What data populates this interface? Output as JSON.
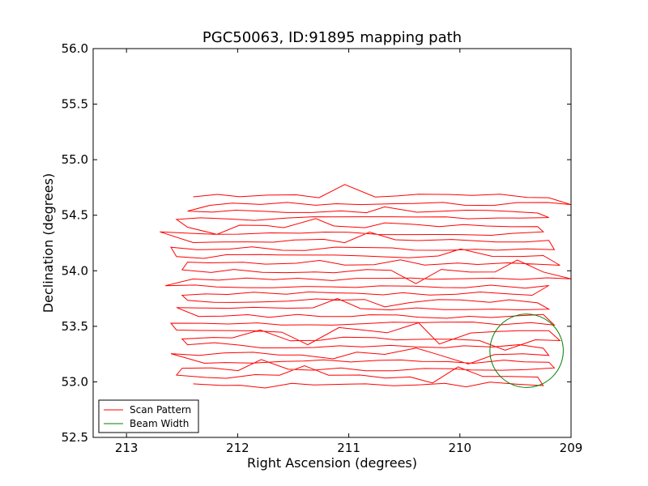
{
  "chart_data": {
    "type": "line",
    "title": "PGC50063, ID:91895 mapping path",
    "xlabel": "Right Ascension (degrees)",
    "ylabel": "Declination (degrees)",
    "xlim": [
      213.3,
      209.0
    ],
    "ylim": [
      52.5,
      56.0
    ],
    "x_ticks": [
      213,
      212,
      211,
      210,
      209
    ],
    "x_tick_labels": [
      "213",
      "212",
      "211",
      "210",
      "209"
    ],
    "y_ticks": [
      52.5,
      53.0,
      53.5,
      54.0,
      54.5,
      55.0,
      55.5,
      56.0
    ],
    "y_tick_labels": [
      "52.5",
      "53.0",
      "53.5",
      "54.0",
      "54.5",
      "55.0",
      "55.5",
      "56.0"
    ],
    "grid": false,
    "legend_position": "lower-left",
    "series": [
      {
        "name": "Scan Pattern",
        "color": "#ff0000",
        "scan": {
          "dec_start": 52.98,
          "dec_step": 0.0677,
          "rows": 26,
          "ra_east": [
            212.4,
            212.55,
            212.5,
            212.3,
            212.6,
            212.45,
            212.5,
            212.55,
            212.6,
            212.35,
            212.55,
            212.45,
            212.5,
            212.65,
            212.4,
            212.5,
            212.45,
            212.55,
            212.6,
            212.4,
            212.7,
            212.45,
            212.55,
            212.45,
            212.25,
            212.4
          ],
          "ra_west": [
            209.25,
            209.3,
            209.15,
            209.2,
            209.2,
            209.25,
            209.1,
            209.2,
            209.15,
            209.25,
            209.2,
            209.3,
            209.35,
            209.2,
            209.0,
            209.25,
            209.1,
            209.25,
            209.15,
            209.2,
            209.25,
            209.3,
            209.2,
            209.3,
            209.0,
            209.2
          ]
        }
      },
      {
        "name": "Beam Width",
        "color": "#008000",
        "circle": {
          "ra": 209.4,
          "dec": 53.28,
          "radius_dec": 0.33
        }
      }
    ]
  }
}
